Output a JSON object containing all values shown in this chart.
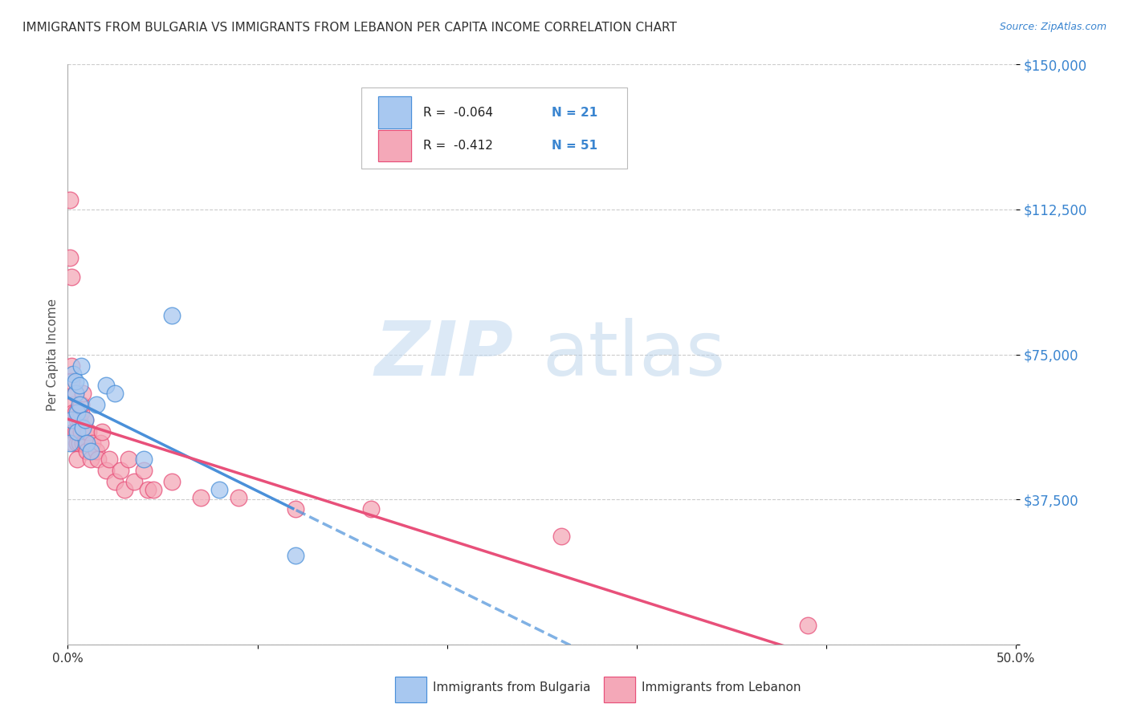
{
  "title": "IMMIGRANTS FROM BULGARIA VS IMMIGRANTS FROM LEBANON PER CAPITA INCOME CORRELATION CHART",
  "source": "Source: ZipAtlas.com",
  "ylabel": "Per Capita Income",
  "xlim": [
    0,
    0.5
  ],
  "ylim": [
    0,
    150000
  ],
  "yticks": [
    0,
    37500,
    75000,
    112500,
    150000
  ],
  "ytick_labels": [
    "",
    "$37,500",
    "$75,000",
    "$112,500",
    "$150,000"
  ],
  "xticks": [
    0.0,
    0.1,
    0.2,
    0.3,
    0.4,
    0.5
  ],
  "xtick_labels": [
    "0.0%",
    "",
    "",
    "",
    "",
    "50.0%"
  ],
  "bulgaria_color": "#a8c8f0",
  "lebanon_color": "#f4a8b8",
  "bulgaria_line_color": "#4a90d9",
  "lebanon_line_color": "#e8507a",
  "legend_R_bulgaria": "R =  -0.064",
  "legend_N_bulgaria": "N = 21",
  "legend_R_lebanon": "R =  -0.412",
  "legend_N_lebanon": "N = 51",
  "watermark_zip": "ZIP",
  "watermark_atlas": "atlas",
  "bulgaria_x": [
    0.001,
    0.002,
    0.003,
    0.004,
    0.004,
    0.005,
    0.005,
    0.006,
    0.006,
    0.007,
    0.008,
    0.009,
    0.01,
    0.012,
    0.015,
    0.02,
    0.025,
    0.04,
    0.055,
    0.08,
    0.12
  ],
  "bulgaria_y": [
    52000,
    58000,
    70000,
    65000,
    68000,
    55000,
    60000,
    62000,
    67000,
    72000,
    56000,
    58000,
    52000,
    50000,
    62000,
    67000,
    65000,
    48000,
    85000,
    40000,
    23000
  ],
  "lebanon_x": [
    0.001,
    0.001,
    0.002,
    0.002,
    0.002,
    0.003,
    0.003,
    0.003,
    0.003,
    0.004,
    0.004,
    0.004,
    0.005,
    0.005,
    0.005,
    0.005,
    0.006,
    0.006,
    0.007,
    0.007,
    0.007,
    0.008,
    0.008,
    0.009,
    0.009,
    0.01,
    0.01,
    0.011,
    0.012,
    0.013,
    0.015,
    0.016,
    0.017,
    0.018,
    0.02,
    0.022,
    0.025,
    0.028,
    0.03,
    0.032,
    0.035,
    0.04,
    0.042,
    0.045,
    0.055,
    0.07,
    0.09,
    0.12,
    0.16,
    0.26,
    0.39
  ],
  "lebanon_y": [
    100000,
    115000,
    95000,
    72000,
    68000,
    62000,
    60000,
    55000,
    52000,
    65000,
    60000,
    55000,
    58000,
    55000,
    52000,
    48000,
    58000,
    52000,
    60000,
    62000,
    55000,
    52000,
    65000,
    58000,
    52000,
    55000,
    50000,
    55000,
    48000,
    52000,
    50000,
    48000,
    52000,
    55000,
    45000,
    48000,
    42000,
    45000,
    40000,
    48000,
    42000,
    45000,
    40000,
    40000,
    42000,
    38000,
    38000,
    35000,
    35000,
    28000,
    5000
  ]
}
